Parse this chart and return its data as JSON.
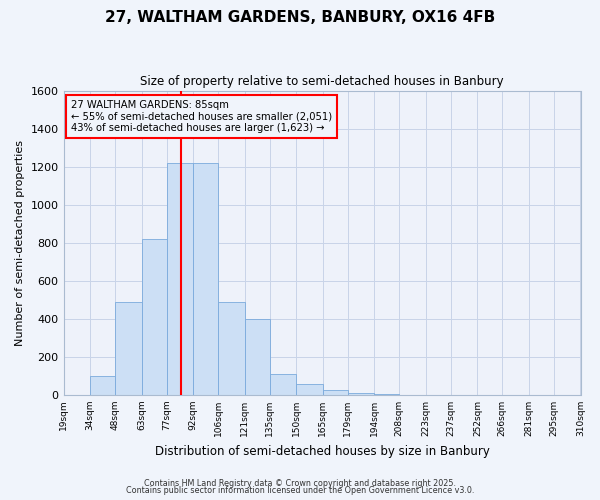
{
  "title": "27, WALTHAM GARDENS, BANBURY, OX16 4FB",
  "subtitle": "Size of property relative to semi-detached houses in Banbury",
  "xlabel": "Distribution of semi-detached houses by size in Banbury",
  "ylabel": "Number of semi-detached properties",
  "bar_left_edges": [
    19,
    34,
    48,
    63,
    77,
    92,
    106,
    121,
    135,
    150,
    165,
    179,
    194,
    208,
    223,
    237,
    252,
    266,
    281,
    295
  ],
  "bar_widths": [
    15,
    14,
    15,
    14,
    15,
    14,
    15,
    14,
    15,
    15,
    14,
    15,
    14,
    15,
    14,
    15,
    14,
    15,
    14,
    15
  ],
  "bar_heights": [
    0,
    100,
    490,
    820,
    1220,
    1220,
    490,
    400,
    110,
    55,
    25,
    10,
    5,
    0,
    0,
    0,
    0,
    0,
    0,
    0
  ],
  "tick_labels": [
    "19sqm",
    "34sqm",
    "48sqm",
    "63sqm",
    "77sqm",
    "92sqm",
    "106sqm",
    "121sqm",
    "135sqm",
    "150sqm",
    "165sqm",
    "179sqm",
    "194sqm",
    "208sqm",
    "223sqm",
    "237sqm",
    "252sqm",
    "266sqm",
    "281sqm",
    "295sqm",
    "310sqm"
  ],
  "tick_positions": [
    19,
    34,
    48,
    63,
    77,
    92,
    106,
    121,
    135,
    150,
    165,
    179,
    194,
    208,
    223,
    237,
    252,
    266,
    281,
    295,
    310
  ],
  "bar_color": "#ccdff5",
  "bar_edge_color": "#7aaadc",
  "vline_x": 85,
  "vline_color": "red",
  "ylim": [
    0,
    1600
  ],
  "yticks": [
    0,
    200,
    400,
    600,
    800,
    1000,
    1200,
    1400,
    1600
  ],
  "annotation_title": "27 WALTHAM GARDENS: 85sqm",
  "annotation_line1": "← 55% of semi-detached houses are smaller (2,051)",
  "annotation_line2": "43% of semi-detached houses are larger (1,623) →",
  "annotation_box_color": "red",
  "footer_line1": "Contains HM Land Registry data © Crown copyright and database right 2025.",
  "footer_line2": "Contains public sector information licensed under the Open Government Licence v3.0.",
  "bg_color": "#f0f4fb",
  "grid_color": "#c8d4e8",
  "plot_bg_color": "#eef2fa"
}
